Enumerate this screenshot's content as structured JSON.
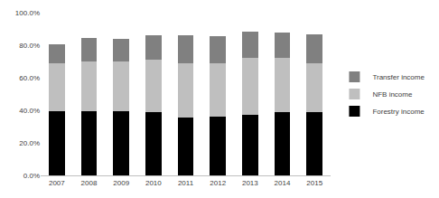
{
  "chart_data": {
    "type": "bar",
    "stacked": true,
    "grid": false,
    "legend": "right",
    "categories": [
      "2007",
      "2008",
      "2009",
      "2010",
      "2011",
      "2012",
      "2013",
      "2014",
      "2015"
    ],
    "series": [
      {
        "name": "Forestry income",
        "color": "#000000",
        "values": [
          39.5,
          39.5,
          39.5,
          39,
          35.5,
          36,
          37.5,
          39,
          39
        ]
      },
      {
        "name": "NFB income",
        "color": "#bfbfbf",
        "values": [
          29.5,
          30.5,
          30.5,
          32,
          33.5,
          33,
          34.5,
          33,
          30
        ]
      },
      {
        "name": "Transfer income",
        "color": "#808080",
        "values": [
          11.5,
          14.5,
          14,
          15,
          17,
          16.5,
          16.5,
          16,
          17.5
        ]
      }
    ],
    "ylim": [
      0,
      100
    ],
    "yticks": [
      {
        "value": 0,
        "label": "0.0%"
      },
      {
        "value": 20,
        "label": "20.0%"
      },
      {
        "value": 40,
        "label": "40.0%"
      },
      {
        "value": 60,
        "label": "60.0%"
      },
      {
        "value": 80,
        "label": "80.0%"
      },
      {
        "value": 100,
        "label": "100.0%"
      }
    ]
  }
}
